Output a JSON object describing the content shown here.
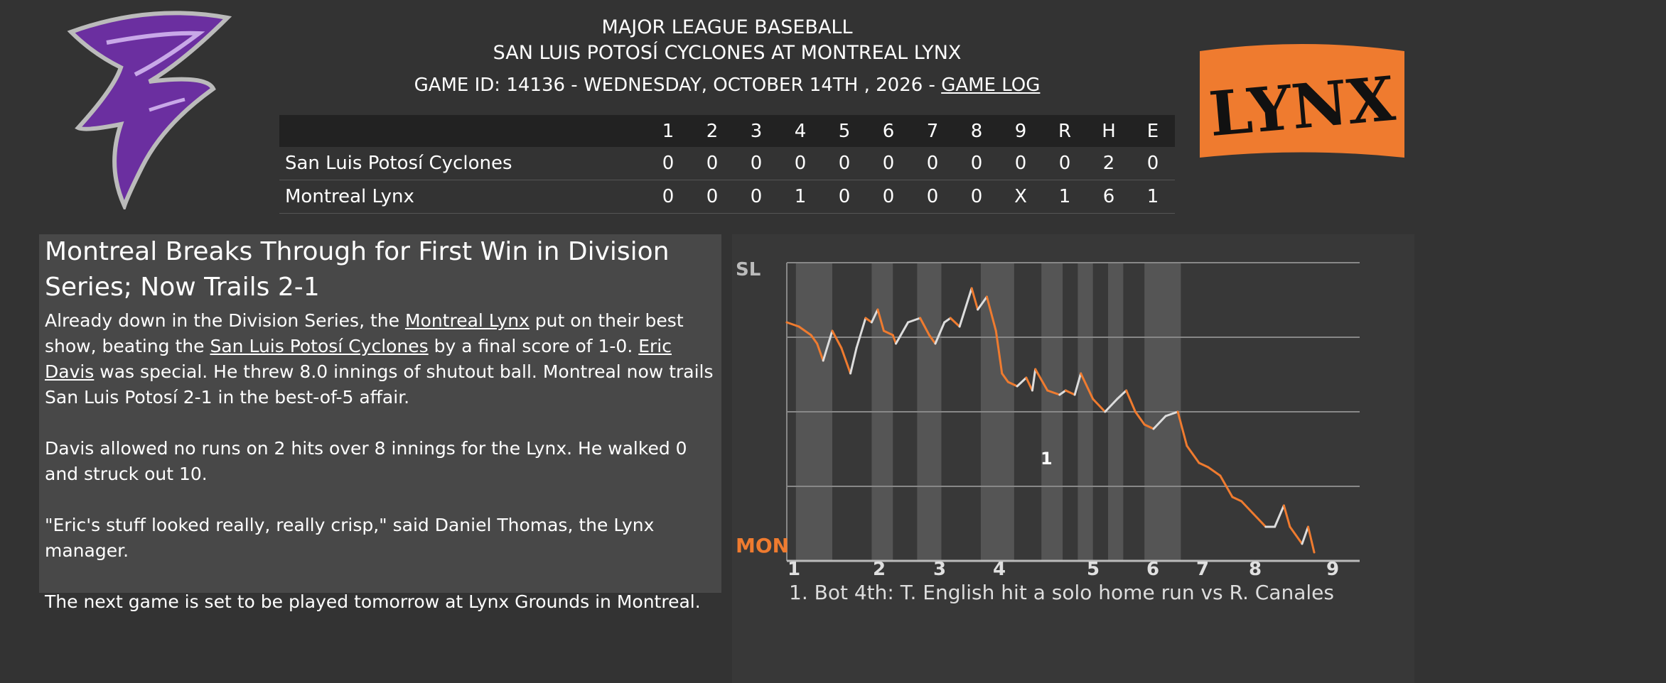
{
  "header": {
    "league": "MAJOR LEAGUE BASEBALL",
    "matchup": "SAN LUIS POTOSÍ CYCLONES AT MONTREAL LYNX",
    "game_info": "GAME ID: 14136 - WEDNESDAY, OCTOBER 14TH , 2026 - ",
    "game_log_link": "GAME LOG"
  },
  "logos": {
    "home_logo_text": "LYNX",
    "away_logo_icon": "tornado-icon",
    "away_color": "#6b2fa0",
    "home_color": "#ef7b2f"
  },
  "linescore": {
    "columns": [
      "1",
      "2",
      "3",
      "4",
      "5",
      "6",
      "7",
      "8",
      "9",
      "R",
      "H",
      "E"
    ],
    "rows": [
      {
        "team": "San Luis Potosí Cyclones",
        "values": [
          "0",
          "0",
          "0",
          "0",
          "0",
          "0",
          "0",
          "0",
          "0",
          "0",
          "2",
          "0"
        ]
      },
      {
        "team": "Montreal Lynx",
        "values": [
          "0",
          "0",
          "0",
          "1",
          "0",
          "0",
          "0",
          "0",
          "X",
          "1",
          "6",
          "1"
        ]
      }
    ]
  },
  "article": {
    "headline": "Montreal Breaks Through for First Win in Division Series; Now Trails 2-1",
    "p1_a": "Already down in the Division Series, the ",
    "p1_link1": "Montreal Lynx",
    "p1_b": " put on their best show, beating the ",
    "p1_link2": "San Luis Potosí Cyclones",
    "p1_c": " by a final score of 1-0. ",
    "p1_link3": "Eric Davis",
    "p1_d": " was special. He threw 8.0 innings of shutout ball. Montreal now trails San Luis Potosí 2-1 in the best-of-5 affair.",
    "p2": "Davis allowed no runs on 2 hits over 8 innings for the Lynx. He walked 0 and struck out 10.",
    "p3": "\"Eric's stuff looked really, really crisp,\" said Daniel Thomas, the Lynx manager.",
    "p4": "The next game is set to be played tomorrow at Lynx Grounds in Montreal."
  },
  "chart_data": {
    "type": "line",
    "top_label": "SL",
    "bottom_label": "MON",
    "innings": [
      "1",
      "2",
      "3",
      "4",
      "5",
      "6",
      "7",
      "8",
      "9"
    ],
    "annotation_marker": "1",
    "footnote": "1. Bot 4th: T. English hit a solo home run vs R. Canales",
    "colors": {
      "away": "#dddddd",
      "home": "#ef7b2f"
    },
    "x_domain": [
      1,
      10
    ],
    "y_domain": [
      0,
      1
    ],
    "series": [
      {
        "points": [
          [
            1.0,
            0.46
          ],
          [
            1.2,
            0.45
          ],
          [
            1.4,
            0.43
          ],
          [
            1.5,
            0.41
          ],
          [
            1.6,
            0.37
          ],
          [
            1.75,
            0.44
          ],
          [
            1.9,
            0.4
          ],
          [
            2.05,
            0.34
          ],
          [
            2.15,
            0.4
          ],
          [
            2.3,
            0.47
          ],
          [
            2.4,
            0.46
          ],
          [
            2.5,
            0.49
          ],
          [
            2.6,
            0.44
          ],
          [
            2.75,
            0.43
          ],
          [
            2.8,
            0.41
          ],
          [
            3.0,
            0.46
          ],
          [
            3.2,
            0.47
          ],
          [
            3.35,
            0.43
          ],
          [
            3.45,
            0.41
          ],
          [
            3.6,
            0.46
          ],
          [
            3.7,
            0.47
          ],
          [
            3.85,
            0.45
          ],
          [
            4.05,
            0.54
          ],
          [
            4.15,
            0.49
          ],
          [
            4.3,
            0.52
          ],
          [
            4.45,
            0.44
          ],
          [
            4.55,
            0.34
          ]
        ]
      },
      {
        "points": [
          [
            4.55,
            0.34
          ],
          [
            4.65,
            0.32
          ],
          [
            4.8,
            0.31
          ],
          [
            4.95,
            0.33
          ],
          [
            5.05,
            0.3
          ],
          [
            5.1,
            0.35
          ],
          [
            5.3,
            0.3
          ],
          [
            5.5,
            0.29
          ],
          [
            5.6,
            0.3
          ],
          [
            5.75,
            0.29
          ],
          [
            5.85,
            0.34
          ],
          [
            6.05,
            0.28
          ],
          [
            6.25,
            0.25
          ],
          [
            6.45,
            0.28
          ],
          [
            6.6,
            0.3
          ],
          [
            6.75,
            0.25
          ],
          [
            6.9,
            0.22
          ],
          [
            7.05,
            0.21
          ],
          [
            7.25,
            0.24
          ],
          [
            7.45,
            0.25
          ],
          [
            7.6,
            0.17
          ],
          [
            7.8,
            0.13
          ],
          [
            7.95,
            0.12
          ],
          [
            8.15,
            0.1
          ],
          [
            8.35,
            0.05
          ],
          [
            8.5,
            0.04
          ],
          [
            8.7,
            0.01
          ],
          [
            8.9,
            -0.02
          ],
          [
            9.05,
            -0.02
          ],
          [
            9.2,
            0.03
          ],
          [
            9.3,
            -0.02
          ],
          [
            9.5,
            -0.06
          ],
          [
            9.6,
            -0.02
          ],
          [
            9.7,
            -0.08
          ]
        ]
      }
    ]
  }
}
